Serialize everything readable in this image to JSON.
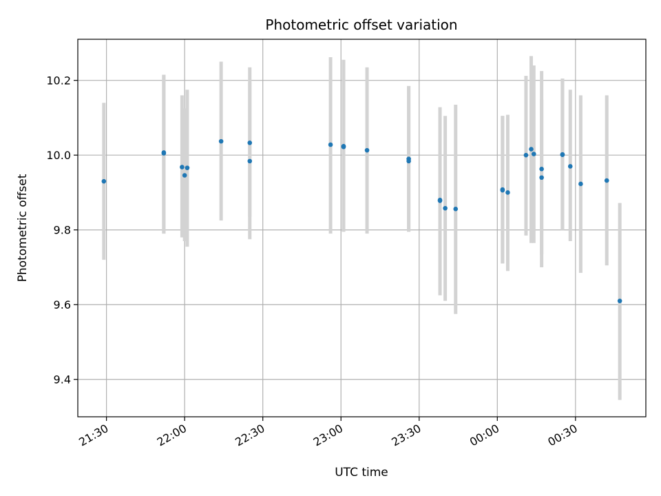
{
  "chart_data": {
    "type": "scatter",
    "title": "Photometric offset variation",
    "xlabel": "UTC time",
    "ylabel": "Photometric offset",
    "grid": true,
    "x_ticks": [
      "21:30",
      "22:00",
      "22:30",
      "23:00",
      "23:30",
      "00:00",
      "00:30"
    ],
    "y_ticks": [
      "9.4",
      "9.6",
      "9.8",
      "10.0",
      "10.2"
    ],
    "x_unit": "UTC time (HH:MM)",
    "x_range": [
      "21:19",
      "00:57"
    ],
    "ylim": [
      9.3,
      10.31
    ],
    "colors": {
      "point": "#1f77b4",
      "errorbar": "#d3d3d3",
      "grid": "#b0b0b0"
    },
    "series": [
      {
        "x": [
          "21:29",
          "21:52",
          "21:52",
          "21:59",
          "22:00",
          "22:01",
          "22:14",
          "22:25",
          "22:25",
          "22:56",
          "23:01",
          "23:01",
          "23:10",
          "23:26",
          "23:26",
          "23:38",
          "23:38",
          "23:40",
          "23:44",
          "00:02",
          "00:02",
          "00:04",
          "00:11",
          "00:13",
          "00:14",
          "00:17",
          "00:17",
          "00:25",
          "00:25",
          "00:28",
          "00:32",
          "00:42",
          "00:47"
        ],
        "y": [
          9.93,
          10.007,
          10.005,
          9.968,
          9.946,
          9.966,
          10.037,
          10.033,
          9.984,
          10.028,
          10.024,
          10.022,
          10.013,
          9.99,
          9.984,
          9.88,
          9.878,
          9.858,
          9.856,
          9.906,
          9.908,
          9.9,
          10.0,
          10.016,
          10.003,
          9.963,
          9.94,
          10.002,
          10.001,
          9.97,
          9.923,
          9.932,
          9.61
        ],
        "yerr_low": [
          9.72,
          9.79,
          9.79,
          9.78,
          9.77,
          9.755,
          9.825,
          9.835,
          9.775,
          9.79,
          9.795,
          9.795,
          9.79,
          9.795,
          9.795,
          9.625,
          9.625,
          9.61,
          9.575,
          9.71,
          9.71,
          9.69,
          9.785,
          9.765,
          9.765,
          9.7,
          9.735,
          9.8,
          9.8,
          9.77,
          9.685,
          9.705,
          9.345
        ],
        "yerr_high": [
          10.14,
          10.215,
          10.215,
          10.16,
          10.125,
          10.175,
          10.25,
          10.235,
          10.195,
          10.262,
          10.255,
          10.255,
          10.235,
          10.185,
          10.185,
          10.128,
          10.128,
          10.105,
          10.135,
          10.105,
          10.105,
          10.108,
          10.212,
          10.265,
          10.24,
          10.225,
          10.148,
          10.205,
          10.205,
          10.175,
          10.16,
          10.16,
          9.872
        ]
      }
    ]
  }
}
